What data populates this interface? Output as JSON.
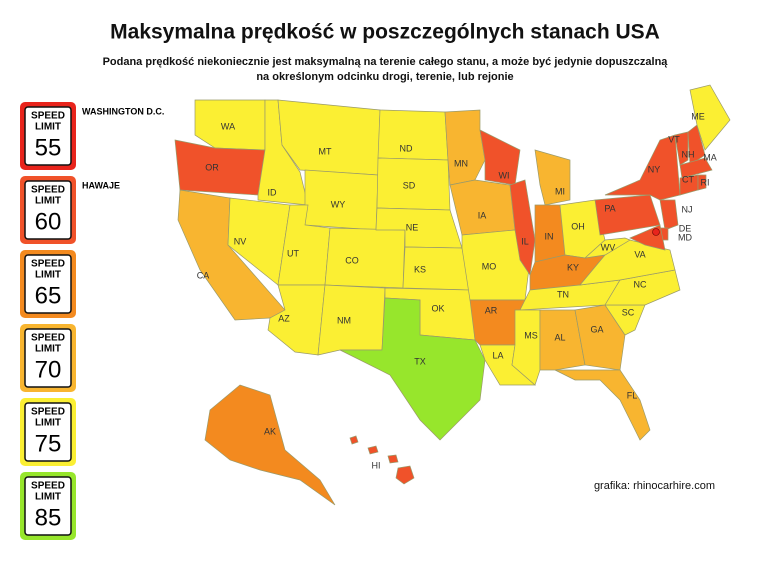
{
  "title": "Maksymalna prędkość w poszczególnych stanach USA",
  "subtitle": [
    "Podana prędkość niekoniecznie jest maksymalną na terenie całego stanu, a może być jedynie dopuszczalną",
    "na określonym odcinku drogi, terenie, lub rejonie"
  ],
  "credit": "grafika: rhinocarhire.com",
  "sign_text": [
    "SPEED",
    "LIMIT"
  ],
  "legend": [
    {
      "limit": 55,
      "color": "#e8241c",
      "note": "WASHINGTON D.C."
    },
    {
      "limit": 60,
      "color": "#f0522a",
      "note": "HAWAJE"
    },
    {
      "limit": 65,
      "color": "#f38a1f"
    },
    {
      "limit": 70,
      "color": "#f8b530"
    },
    {
      "limit": 75,
      "color": "#fbef33"
    },
    {
      "limit": 85,
      "color": "#97e62c"
    }
  ],
  "dc_limit": 55,
  "states": [
    {
      "label": "WA",
      "limit": 75
    },
    {
      "label": "OR",
      "limit": 60
    },
    {
      "label": "CA",
      "limit": 70
    },
    {
      "label": "NV",
      "limit": 75
    },
    {
      "label": "ID",
      "limit": 75
    },
    {
      "label": "MT",
      "limit": 75
    },
    {
      "label": "WY",
      "limit": 75
    },
    {
      "label": "UT",
      "limit": 75
    },
    {
      "label": "AZ",
      "limit": 75
    },
    {
      "label": "CO",
      "limit": 75
    },
    {
      "label": "NM",
      "limit": 75
    },
    {
      "label": "ND",
      "limit": 75
    },
    {
      "label": "SD",
      "limit": 75
    },
    {
      "label": "NE",
      "limit": 75
    },
    {
      "label": "KS",
      "limit": 75
    },
    {
      "label": "OK",
      "limit": 75
    },
    {
      "label": "TX",
      "limit": 85
    },
    {
      "label": "MN",
      "limit": 70
    },
    {
      "label": "IA",
      "limit": 70
    },
    {
      "label": "MO",
      "limit": 75
    },
    {
      "label": "AR",
      "limit": 65
    },
    {
      "label": "LA",
      "limit": 75
    },
    {
      "label": "WI",
      "limit": 60
    },
    {
      "label": "IL",
      "limit": 60
    },
    {
      "label": "MI",
      "limit": 70
    },
    {
      "label": "IN",
      "limit": 65
    },
    {
      "label": "OH",
      "limit": 75
    },
    {
      "label": "KY",
      "limit": 65
    },
    {
      "label": "TN",
      "limit": 75
    },
    {
      "label": "MS",
      "limit": 75
    },
    {
      "label": "AL",
      "limit": 70
    },
    {
      "label": "GA",
      "limit": 70
    },
    {
      "label": "FL",
      "limit": 70
    },
    {
      "label": "SC",
      "limit": 75
    },
    {
      "label": "NC",
      "limit": 75
    },
    {
      "label": "VA",
      "limit": 75
    },
    {
      "label": "WV",
      "limit": 75
    },
    {
      "label": "PA",
      "limit": 60
    },
    {
      "label": "NY",
      "limit": 60
    },
    {
      "label": "VT",
      "limit": 60
    },
    {
      "label": "NH",
      "limit": 60
    },
    {
      "label": "ME",
      "limit": 75
    },
    {
      "label": "MA",
      "limit": 60
    },
    {
      "label": "CT",
      "limit": 60
    },
    {
      "label": "RI",
      "limit": 60
    },
    {
      "label": "NJ",
      "limit": 60
    },
    {
      "label": "DE",
      "limit": 60
    },
    {
      "label": "MD",
      "limit": 60
    },
    {
      "label": "AK",
      "limit": 65
    },
    {
      "label": "HI",
      "limit": 60
    }
  ]
}
